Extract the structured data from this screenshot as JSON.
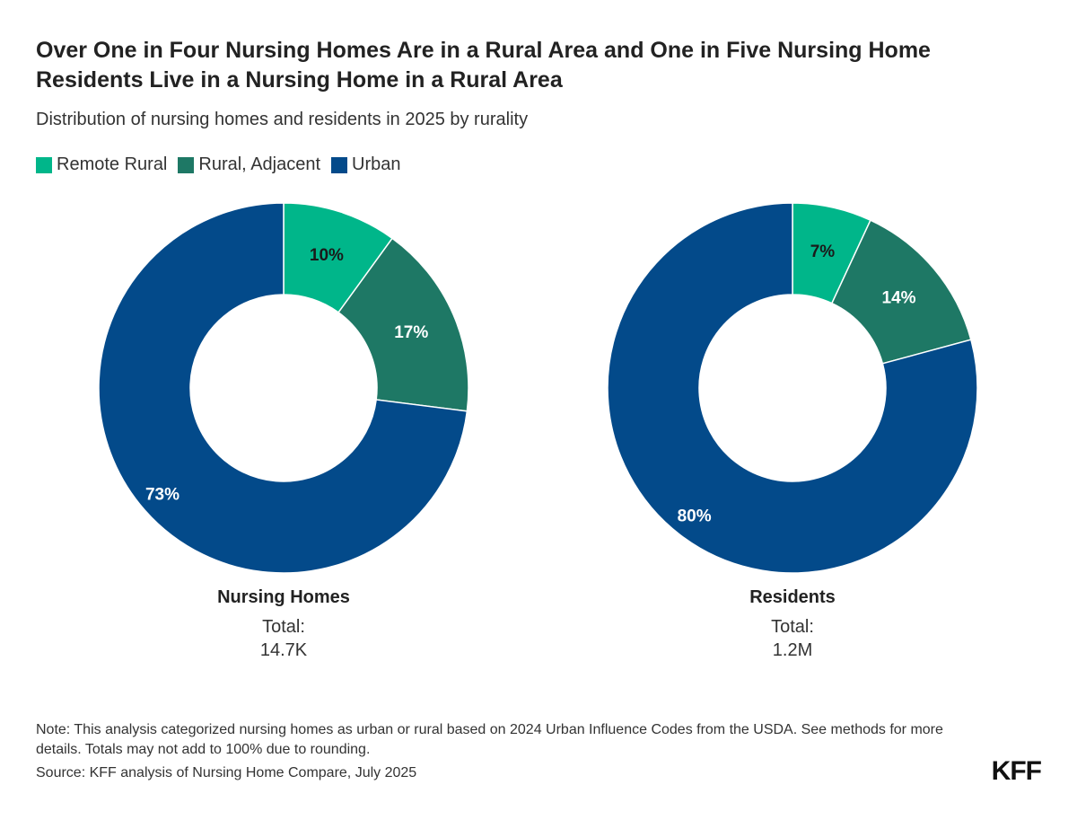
{
  "title": "Over One in Four Nursing Homes Are in a Rural Area and One in Five Nursing Home Residents Live in a Nursing Home in a Rural Area",
  "subtitle": "Distribution of nursing homes and residents in 2025 by rurality",
  "legend": [
    {
      "label": "Remote Rural",
      "color": "#00b68a"
    },
    {
      "label": "Rural, Adjacent",
      "color": "#1e7865"
    },
    {
      "label": "Urban",
      "color": "#034a8a"
    }
  ],
  "chart_data": [
    {
      "type": "pie",
      "name": "Nursing Homes",
      "total_label": "Total:",
      "total_value": "14.7K",
      "categories": [
        "Remote Rural",
        "Rural, Adjacent",
        "Urban"
      ],
      "values": [
        10,
        17,
        73
      ],
      "labels": [
        "10%",
        "17%",
        "73%"
      ]
    },
    {
      "type": "pie",
      "name": "Residents",
      "total_label": "Total:",
      "total_value": "1.2M",
      "categories": [
        "Remote Rural",
        "Rural, Adjacent",
        "Urban"
      ],
      "values": [
        7,
        14,
        80
      ],
      "labels": [
        "7%",
        "14%",
        "80%"
      ]
    }
  ],
  "footer": {
    "note": "Note: This analysis categorized nursing homes as urban or rural based on 2024 Urban Influence Codes from the USDA. See methods for more details. Totals may not add to 100% due to rounding.",
    "source": "Source: KFF analysis of Nursing Home Compare, July 2025",
    "logo": "KFF"
  }
}
